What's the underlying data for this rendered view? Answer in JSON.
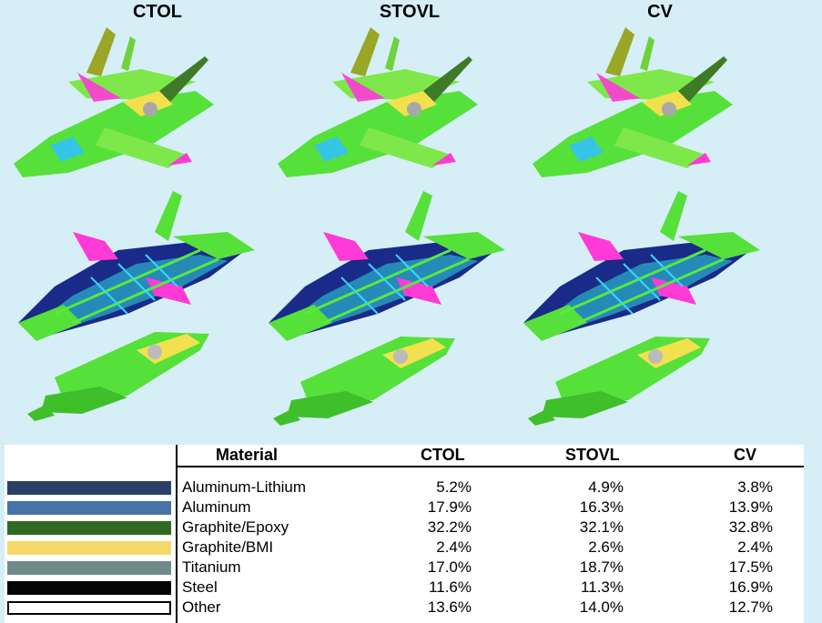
{
  "variants": [
    "CTOL",
    "STOVL",
    "CV"
  ],
  "table": {
    "headers": {
      "material": "Material",
      "ctol": "CTOL",
      "stovl": "STOVL",
      "cv": "CV"
    },
    "rows": [
      {
        "material": "Aluminum-Lithium",
        "color": "#2a4066",
        "ctol": "5.2%",
        "stovl": "4.9%",
        "cv": "3.8%"
      },
      {
        "material": "Aluminum",
        "color": "#4872a8",
        "ctol": "17.9%",
        "stovl": "16.3%",
        "cv": "13.9%"
      },
      {
        "material": "Graphite/Epoxy",
        "color": "#2f6a22",
        "ctol": "32.2%",
        "stovl": "32.1%",
        "cv": "32.8%"
      },
      {
        "material": "Graphite/BMI",
        "color": "#f4d86a",
        "ctol": "2.4%",
        "stovl": "2.6%",
        "cv": "2.4%"
      },
      {
        "material": "Titanium",
        "color": "#6e8a8a",
        "ctol": "17.0%",
        "stovl": "18.7%",
        "cv": "17.5%"
      },
      {
        "material": "Steel",
        "color": "#050505",
        "ctol": "11.6%",
        "stovl": "11.3%",
        "cv": "16.9%"
      },
      {
        "material": "Other",
        "color": "#ffffff",
        "ctol": "13.6%",
        "stovl": "14.0%",
        "cv": "12.7%"
      }
    ]
  }
}
